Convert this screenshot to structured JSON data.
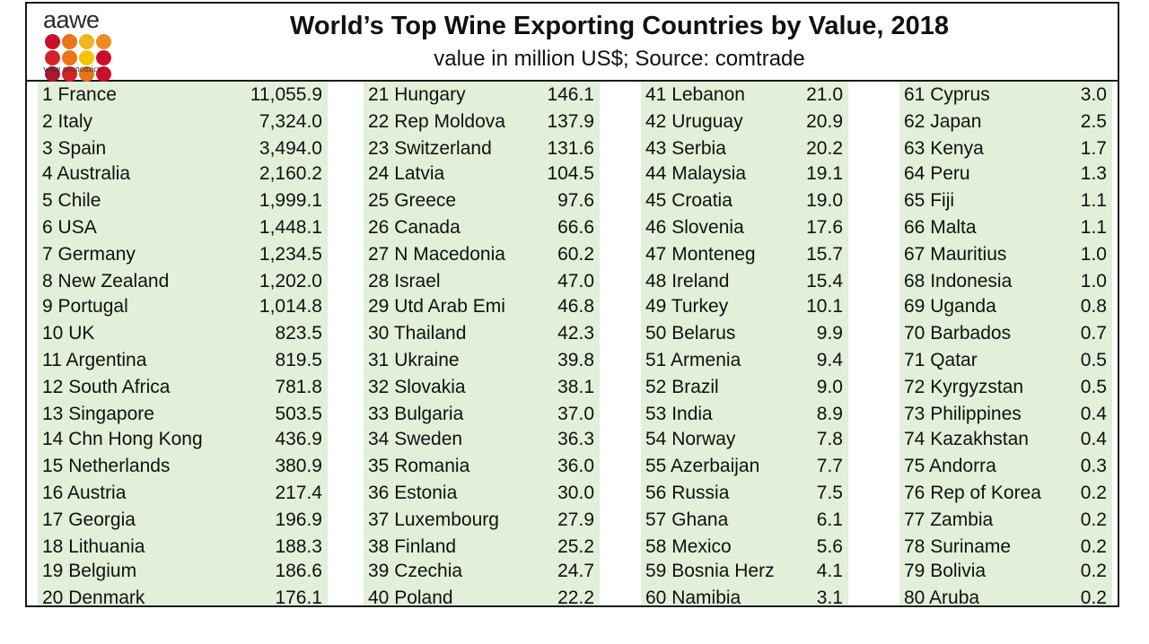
{
  "logo": {
    "wordmark": "aawe",
    "tagline": "wine economics",
    "dot_colors": [
      "#c8102e",
      "#e8751a",
      "#f0b323",
      "#f08a24",
      "#d2232a",
      "#e8751a",
      "#f5c400",
      "#c8102e",
      "#a6192e",
      "#d2232a",
      "#e8751a",
      "#c8102e"
    ]
  },
  "header": {
    "title": "World’s Top Wine Exporting Countries by Value, 2018",
    "subtitle": "value in million US$; Source: comtrade"
  },
  "colors": {
    "column_bg": "#e2efd9",
    "border": "#1a1a1a"
  },
  "chart_data": {
    "type": "table",
    "title": "World’s Top Wine Exporting Countries by Value, 2018",
    "subtitle": "value in million US$; Source: comtrade",
    "columns": [
      [
        {
          "rank": "1",
          "country": "France",
          "value": "11,055.9"
        },
        {
          "rank": "2",
          "country": "Italy",
          "value": "7,324.0"
        },
        {
          "rank": "3",
          "country": "Spain",
          "value": "3,494.0"
        },
        {
          "rank": "4",
          "country": "Australia",
          "value": "2,160.2"
        },
        {
          "rank": "5",
          "country": "Chile",
          "value": "1,999.1"
        },
        {
          "rank": "6",
          "country": "USA",
          "value": "1,448.1"
        },
        {
          "rank": "7",
          "country": "Germany",
          "value": "1,234.5"
        },
        {
          "rank": "8",
          "country": "New Zealand",
          "value": "1,202.0"
        },
        {
          "rank": "9",
          "country": "Portugal",
          "value": "1,014.8"
        },
        {
          "rank": "10",
          "country": "UK",
          "value": "823.5"
        },
        {
          "rank": "11",
          "country": "Argentina",
          "value": "819.5"
        },
        {
          "rank": "12",
          "country": "South Africa",
          "value": "781.8"
        },
        {
          "rank": "13",
          "country": "Singapore",
          "value": "503.5"
        },
        {
          "rank": "14",
          "country": "Chn Hong Kong",
          "value": "436.9"
        },
        {
          "rank": "15",
          "country": "Netherlands",
          "value": "380.9"
        },
        {
          "rank": "16",
          "country": "Austria",
          "value": "217.4"
        },
        {
          "rank": "17",
          "country": "Georgia",
          "value": "196.9"
        },
        {
          "rank": "18",
          "country": "Lithuania",
          "value": "188.3"
        },
        {
          "rank": "19",
          "country": "Belgium",
          "value": "186.6"
        },
        {
          "rank": "20",
          "country": "Denmark",
          "value": "176.1"
        }
      ],
      [
        {
          "rank": "21",
          "country": "Hungary",
          "value": "146.1"
        },
        {
          "rank": "22",
          "country": "Rep Moldova",
          "value": "137.9"
        },
        {
          "rank": "23",
          "country": "Switzerland",
          "value": "131.6"
        },
        {
          "rank": "24",
          "country": "Latvia",
          "value": "104.5"
        },
        {
          "rank": "25",
          "country": "Greece",
          "value": "97.6"
        },
        {
          "rank": "26",
          "country": "Canada",
          "value": "66.6"
        },
        {
          "rank": "27",
          "country": "N Macedonia",
          "value": "60.2"
        },
        {
          "rank": "28",
          "country": "Israel",
          "value": "47.0"
        },
        {
          "rank": "29",
          "country": "Utd Arab Emi",
          "value": "46.8"
        },
        {
          "rank": "30",
          "country": "Thailand",
          "value": "42.3"
        },
        {
          "rank": "31",
          "country": "Ukraine",
          "value": "39.8"
        },
        {
          "rank": "32",
          "country": "Slovakia",
          "value": "38.1"
        },
        {
          "rank": "33",
          "country": "Bulgaria",
          "value": "37.0"
        },
        {
          "rank": "34",
          "country": "Sweden",
          "value": "36.3"
        },
        {
          "rank": "35",
          "country": "Romania",
          "value": "36.0"
        },
        {
          "rank": "36",
          "country": "Estonia",
          "value": "30.0"
        },
        {
          "rank": "37",
          "country": "Luxembourg",
          "value": "27.9"
        },
        {
          "rank": "38",
          "country": "Finland",
          "value": "25.2"
        },
        {
          "rank": "39",
          "country": "Czechia",
          "value": "24.7"
        },
        {
          "rank": "40",
          "country": "Poland",
          "value": "22.2"
        }
      ],
      [
        {
          "rank": "41",
          "country": "Lebanon",
          "value": "21.0"
        },
        {
          "rank": "42",
          "country": "Uruguay",
          "value": "20.9"
        },
        {
          "rank": "43",
          "country": "Serbia",
          "value": "20.2"
        },
        {
          "rank": "44",
          "country": "Malaysia",
          "value": "19.1"
        },
        {
          "rank": "45",
          "country": "Croatia",
          "value": "19.0"
        },
        {
          "rank": "46",
          "country": "Slovenia",
          "value": "17.6"
        },
        {
          "rank": "47",
          "country": "Monteneg",
          "value": "15.7"
        },
        {
          "rank": "48",
          "country": "Ireland",
          "value": "15.4"
        },
        {
          "rank": "49",
          "country": "Turkey",
          "value": "10.1"
        },
        {
          "rank": "50",
          "country": "Belarus",
          "value": "9.9"
        },
        {
          "rank": "51",
          "country": "Armenia",
          "value": "9.4"
        },
        {
          "rank": "52",
          "country": "Brazil",
          "value": "9.0"
        },
        {
          "rank": "53",
          "country": "India",
          "value": "8.9"
        },
        {
          "rank": "54",
          "country": "Norway",
          "value": "7.8"
        },
        {
          "rank": "55",
          "country": "Azerbaijan",
          "value": "7.7"
        },
        {
          "rank": "56",
          "country": "Russia",
          "value": "7.5"
        },
        {
          "rank": "57",
          "country": "Ghana",
          "value": "6.1"
        },
        {
          "rank": "58",
          "country": "Mexico",
          "value": "5.6"
        },
        {
          "rank": "59",
          "country": "Bosnia Herz",
          "value": "4.1"
        },
        {
          "rank": "60",
          "country": "Namibia",
          "value": "3.1"
        }
      ],
      [
        {
          "rank": "61",
          "country": "Cyprus",
          "value": "3.0"
        },
        {
          "rank": "62",
          "country": "Japan",
          "value": "2.5"
        },
        {
          "rank": "63",
          "country": "Kenya",
          "value": "1.7"
        },
        {
          "rank": "64",
          "country": "Peru",
          "value": "1.3"
        },
        {
          "rank": "65",
          "country": "Fiji",
          "value": "1.1"
        },
        {
          "rank": "66",
          "country": "Malta",
          "value": "1.1"
        },
        {
          "rank": "67",
          "country": "Mauritius",
          "value": "1.0"
        },
        {
          "rank": "68",
          "country": "Indonesia",
          "value": "1.0"
        },
        {
          "rank": "69",
          "country": "Uganda",
          "value": "0.8"
        },
        {
          "rank": "70",
          "country": "Barbados",
          "value": "0.7"
        },
        {
          "rank": "71",
          "country": "Qatar",
          "value": "0.5"
        },
        {
          "rank": "72",
          "country": "Kyrgyzstan",
          "value": "0.5"
        },
        {
          "rank": "73",
          "country": "Philippines",
          "value": "0.4"
        },
        {
          "rank": "74",
          "country": "Kazakhstan",
          "value": "0.4"
        },
        {
          "rank": "75",
          "country": "Andorra",
          "value": "0.3"
        },
        {
          "rank": "76",
          "country": "Rep of Korea",
          "value": "0.2"
        },
        {
          "rank": "77",
          "country": "Zambia",
          "value": "0.2"
        },
        {
          "rank": "78",
          "country": "Suriname",
          "value": "0.2"
        },
        {
          "rank": "79",
          "country": "Bolivia",
          "value": "0.2"
        },
        {
          "rank": "80",
          "country": "Aruba",
          "value": "0.2"
        }
      ]
    ]
  }
}
